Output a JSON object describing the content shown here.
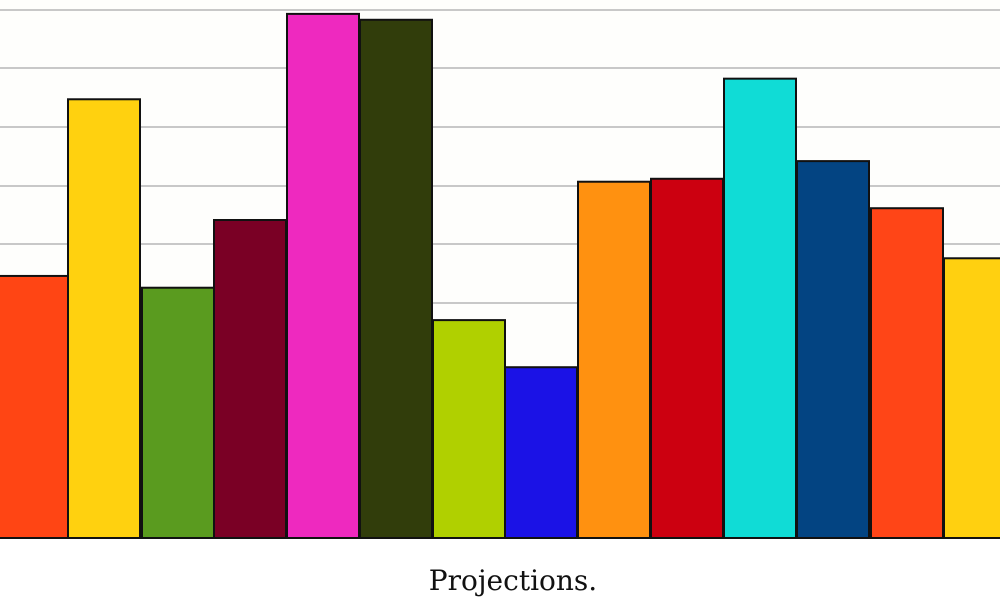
{
  "chart_data": {
    "type": "bar",
    "caption": "Projections.",
    "values": [
      0.445,
      0.745,
      0.425,
      0.54,
      0.89,
      0.88,
      0.37,
      0.29,
      0.605,
      0.61,
      0.78,
      0.64,
      0.56,
      0.475
    ],
    "colors": [
      "#ff4514",
      "#ffd10f",
      "#5a9b1f",
      "#7a0025",
      "#ee29bf",
      "#313d0b",
      "#b0d000",
      "#1b12e6",
      "#ff9110",
      "#cc0010",
      "#10dcd6",
      "#034482",
      "#ff4517",
      "#ffd010"
    ],
    "ylim": [
      0,
      0.9
    ],
    "grid": true,
    "grid_color": "#c8c8c8",
    "plot_background": "#fefefc"
  }
}
